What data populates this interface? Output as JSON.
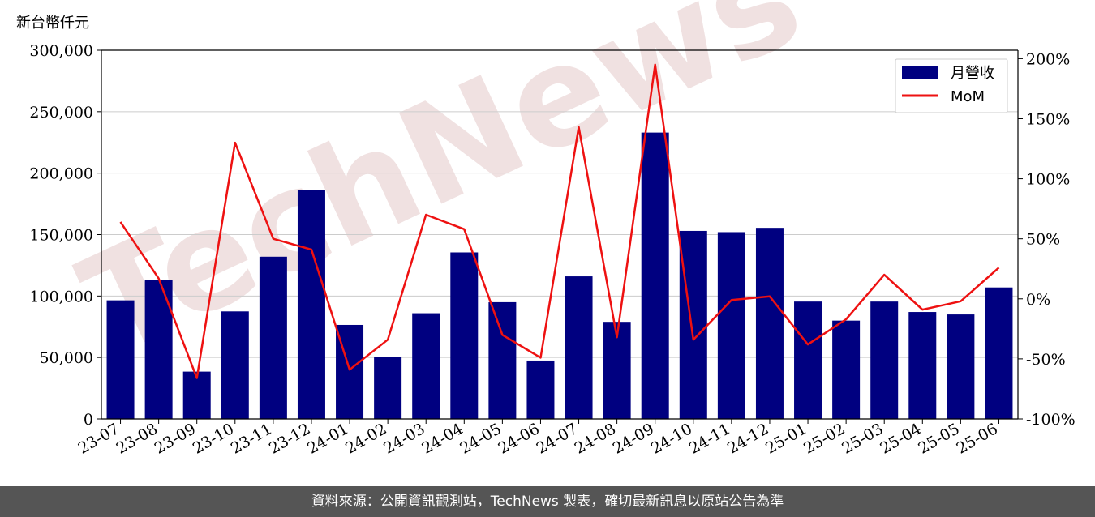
{
  "colors": {
    "bar": "#000080",
    "line": "#ee1111",
    "grid": "#cccccc",
    "footer_bg": "#555555",
    "watermark": "#f0e1e1"
  },
  "watermark": {
    "text": "TechNews"
  },
  "footer": {
    "text": "資料來源：公開資訊觀測站，TechNews 製表，確切最新訊息以原站公告為準"
  },
  "chart_data": {
    "type": "bar",
    "unit_label": "新台幣仟元",
    "categories": [
      "23-07",
      "23-08",
      "23-09",
      "23-10",
      "23-11",
      "23-12",
      "24-01",
      "24-02",
      "24-03",
      "24-04",
      "24-05",
      "24-06",
      "24-07",
      "24-08",
      "24-09",
      "24-10",
      "24-11",
      "24-12",
      "25-01",
      "25-02",
      "25-03",
      "25-04",
      "25-05",
      "25-06"
    ],
    "series": [
      {
        "name": "月營收",
        "type": "bar",
        "axis": "left",
        "values": [
          96500,
          113000,
          38500,
          87500,
          132000,
          186000,
          76500,
          50500,
          86000,
          135500,
          95000,
          47500,
          116000,
          79000,
          233000,
          153000,
          152000,
          155500,
          95500,
          80000,
          95500,
          87000,
          85000,
          107000
        ]
      },
      {
        "name": "MoM",
        "type": "line",
        "axis": "right",
        "values": [
          64,
          17,
          -66,
          130,
          50,
          41,
          -59,
          -34,
          70,
          58,
          -30,
          -49,
          143,
          -32,
          195,
          -34,
          -1,
          2,
          -38,
          -17,
          20,
          -9,
          -2,
          26
        ]
      }
    ],
    "y_left": {
      "min": 0,
      "max": 300000,
      "ticks": [
        "0",
        "50,000",
        "100,000",
        "150,000",
        "200,000",
        "250,000",
        "300,000"
      ]
    },
    "y_right": {
      "min": -100,
      "max": 207,
      "ticks": [
        "-100%",
        "-50%",
        "0%",
        "50%",
        "100%",
        "150%",
        "200%"
      ]
    },
    "grid": "horizontal",
    "legend": "top-right"
  }
}
